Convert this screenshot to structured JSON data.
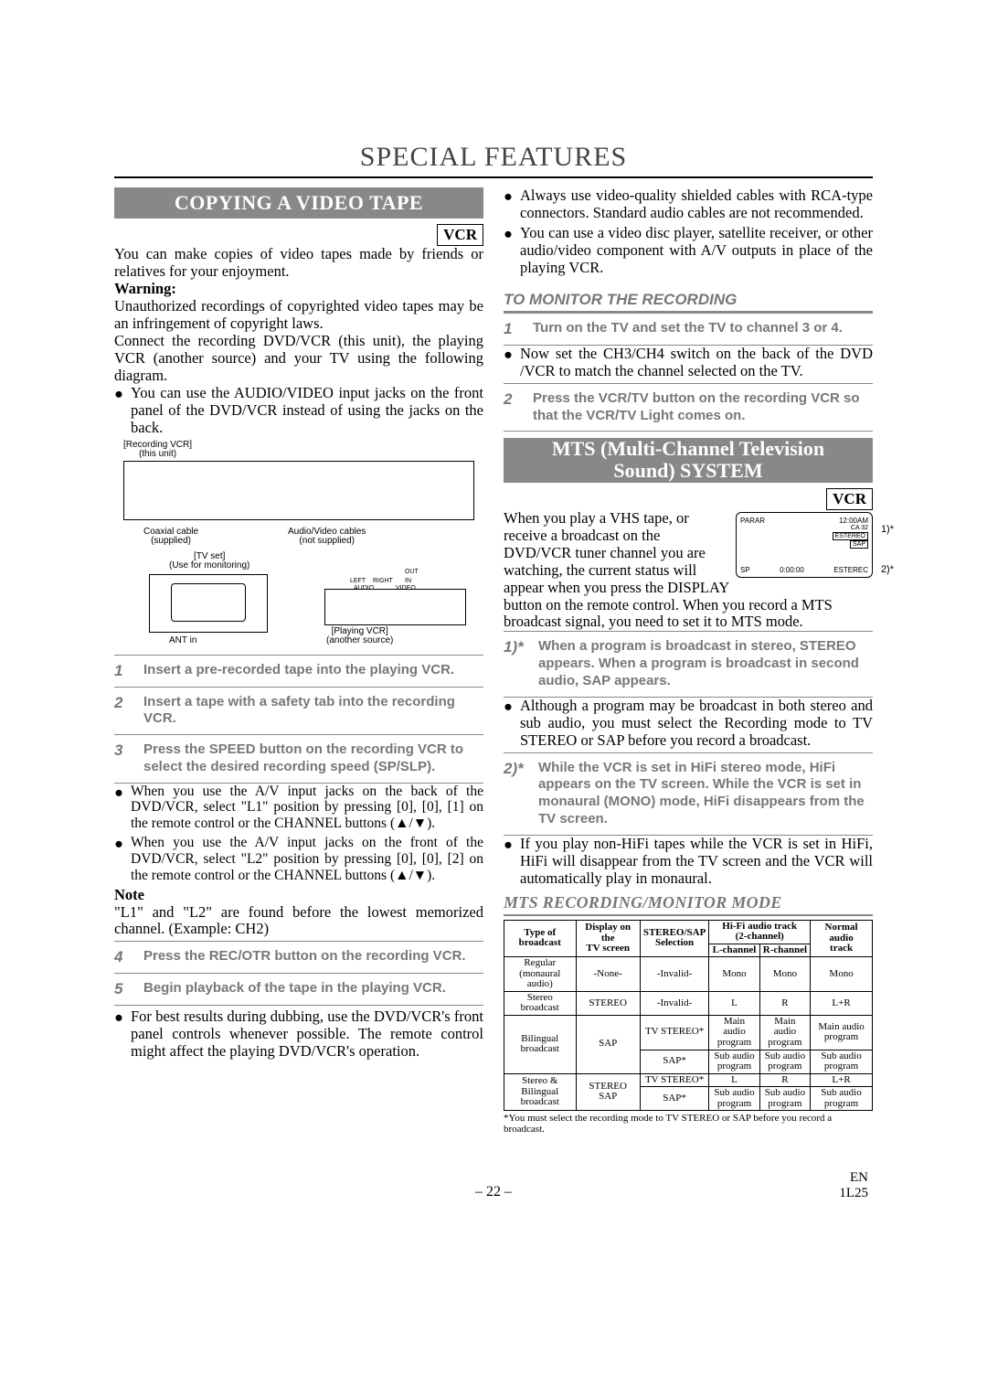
{
  "page_title": "SPECIAL FEATURES",
  "left": {
    "heading": "COPYING A VIDEO TAPE",
    "vcr_badge": "VCR",
    "intro": "You can make copies of video tapes made by friends or relatives for your enjoyment.",
    "warning_label": "Warning:",
    "warning_text": "Unauthorized recordings of copyrighted video tapes may be an infringement of copyright laws.",
    "connect_text": "Connect the recording DVD/VCR (this unit), the playing VCR (another source) and your TV using the following diagram.",
    "front_jacks": "You can use the AUDIO/VIDEO input jacks on the front panel of the DVD/VCR instead of using the jacks on the back.",
    "diagram": {
      "rec_vcr": "[Recording VCR]\n(this unit)",
      "coax": "Coaxial cable\n(supplied)",
      "av": "Audio/Video cables\n(not supplied)",
      "tv": "[TV set]\n(Use for monitoring)",
      "play": "[Playing VCR]\n(another source)",
      "ant": "ANT in",
      "audio": "AUDIO",
      "video": "VIDEO",
      "left_lbl": "LEFT",
      "right_lbl": "RIGHT",
      "in": "IN",
      "out": "OUT"
    },
    "steps_a": [
      {
        "n": "1",
        "t": "Insert a pre-recorded tape into the playing VCR."
      },
      {
        "n": "2",
        "t": "Insert a tape with a safety tab into the recording VCR."
      },
      {
        "n": "3",
        "t": "Press the SPEED button on the recording VCR to select the desired recording speed (SP/SLP)."
      }
    ],
    "l1_text": "When you use the A/V input jacks on the back of the DVD/VCR, select \"L1\" position by pressing [0], [0], [1] on the remote control or the CHANNEL buttons (▲/▼).",
    "l2_text": "When you use the A/V input jacks on the front of the DVD/VCR, select \"L2\" position by pressing [0], [0], [2] on the remote control or the CHANNEL buttons (▲/▼).",
    "note_label": "Note",
    "note_text": "\"L1\" and \"L2\" are found before the lowest memorized channel.  (Example: CH2)",
    "steps_b": [
      {
        "n": "4",
        "t": "Press the REC/OTR button on the recording VCR."
      },
      {
        "n": "5",
        "t": "Begin playback of the tape in the playing VCR."
      }
    ],
    "dubbing": "For best results during dubbing, use the DVD/VCR's front panel controls whenever possible. The remote control might affect the playing DVD/VCR's operation."
  },
  "right": {
    "shielded": "Always use video-quality shielded cables with RCA-type connectors. Standard audio cables are not recommended.",
    "disc": "You can use a video disc player, satellite receiver, or other audio/video component with A/V outputs in place of the playing VCR.",
    "monitor_heading": "TO MONITOR THE RECORDING",
    "mon_steps": [
      {
        "n": "1",
        "t": "Turn on the TV and set the TV to channel 3 or 4."
      }
    ],
    "mon_bullet": "Now set the CH3/CH4 switch on the back of the DVD /VCR to match the channel selected on the TV.",
    "mon_steps2": [
      {
        "n": "2",
        "t": "Press the VCR/TV button on the recording VCR so that the VCR/TV Light comes on."
      }
    ],
    "mts_heading_l1": "MTS (Multi-Channel Television",
    "mts_heading_l2": "Sound) SYSTEM",
    "vcr_badge": "VCR",
    "mts_intro": "When you play a VHS tape, or receive a broadcast on the DVD/VCR tuner channel you are watching, the current status will appear when you press the DISPLAY button on the remote control. When you record a MTS broadcast signal, you need to set it to MTS mode.",
    "lcd": {
      "parar": "PARAR",
      "time": "12:00AM",
      "ch": "CA 32",
      "estereo": "ESTEREO",
      "sap": "SAP",
      "sp": "SP",
      "counter": "0:00:00",
      "estereo2": "ESTEREC",
      "m1": "1)*",
      "m2": "2)*"
    },
    "mts_note1_n": "1)*",
    "mts_note1": "When a program is broadcast in stereo, STEREO appears.  When a program is broadcast in second audio, SAP appears.",
    "mts_bullet1": "Although a program may be broadcast in both stereo and sub audio, you must select the Recording mode to TV STEREO or SAP before you record a broadcast.",
    "mts_note2_n": "2)*",
    "mts_note2": "While the VCR is set in HiFi stereo mode, HiFi appears on the TV screen.  While the VCR is set in monaural (MONO) mode, HiFi disappears from the TV screen.",
    "mts_bullet2": "If you play non-HiFi tapes while the VCR is set in HiFi, HiFi will disappear from the TV screen and the VCR will automatically play in monaural.",
    "table_heading": "MTS RECORDING/MONITOR MODE",
    "table": {
      "headers": {
        "type": "Type of\nbroadcast",
        "display": "Display on the\nTV screen",
        "sel": "STEREO/SAP\nSelection",
        "hifi": "Hi-Fi audio track\n(2-channel)",
        "lch": "L-channel",
        "rch": "R-channel",
        "normal": "Normal audio\ntrack"
      },
      "rows": [
        {
          "type": "Regular\n(monaural audio)",
          "disp": "-None-",
          "sel": "-Invalid-",
          "l": "Mono",
          "r": "Mono",
          "n": "Mono",
          "rowspan": 1
        },
        {
          "type": "Stereo\nbroadcast",
          "disp": "STEREO",
          "sel": "-Invalid-",
          "l": "L",
          "r": "R",
          "n": "L+R",
          "rowspan": 1
        },
        {
          "type": "Bilingual\nbroadcast",
          "disp": "SAP",
          "sel": "TV STEREO*",
          "l": "Main audio\nprogram",
          "r": "Main audio\nprogram",
          "n": "Main audio\nprogram"
        },
        {
          "sel": "SAP*",
          "l": "Sub audio\nprogram",
          "r": "Sub audio\nprogram",
          "n": "Sub audio\nprogram"
        },
        {
          "type": "Stereo &\nBilingual\nbroadcast",
          "disp": "STEREO\nSAP",
          "sel": "TV STEREO*",
          "l": "L",
          "r": "R",
          "n": "L+R"
        },
        {
          "sel": "SAP*",
          "l": "Sub audio\nprogram",
          "r": "Sub audio\nprogram",
          "n": "Sub audio\nprogram"
        }
      ],
      "note": "*You must select the recording mode to TV STEREO or SAP before you record a broadcast."
    }
  },
  "footer": {
    "page": "– 22 –",
    "en": "EN",
    "code": "1L25"
  }
}
